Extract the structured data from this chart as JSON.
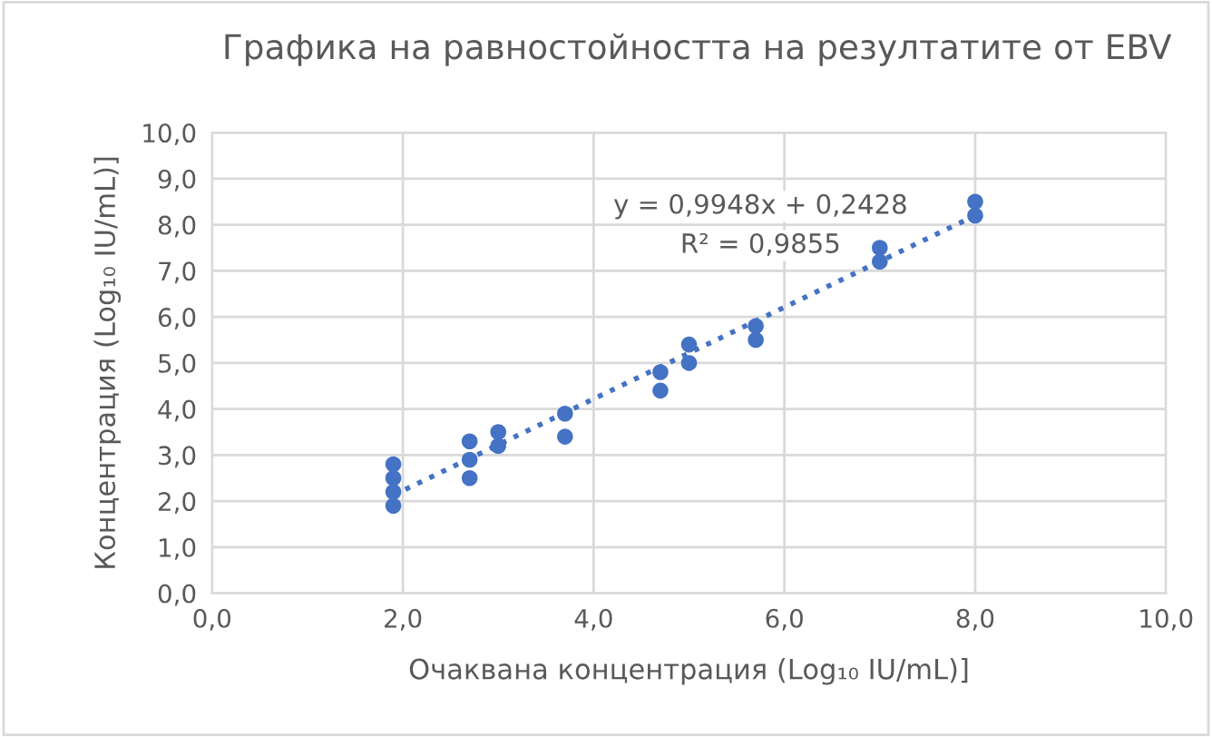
{
  "chart_data": {
    "type": "scatter",
    "title": "Графика на равностойността на резултатите от EBV",
    "xlabel": "Очаквана концентрация (Log₁₀ IU/mL)]",
    "ylabel": "Концентрация (Log₁₀ IU/mL)]",
    "series": [
      {
        "color": "#4472c4",
        "marker": "circle",
        "x": [
          1.9,
          1.9,
          1.9,
          1.9,
          2.7,
          2.7,
          2.7,
          3.0,
          3.0,
          3.7,
          3.7,
          4.7,
          4.7,
          5.0,
          5.0,
          5.7,
          5.7,
          7.0,
          7.0,
          8.0,
          8.0
        ],
        "values": [
          1.9,
          2.2,
          2.5,
          2.8,
          2.5,
          2.9,
          3.3,
          3.2,
          3.5,
          3.4,
          3.9,
          4.4,
          4.8,
          5.0,
          5.4,
          5.5,
          5.8,
          7.2,
          7.5,
          8.2,
          8.5
        ]
      },
      {
        "type": "line",
        "color": "#4472c4",
        "line_style": "dotted",
        "marker": "none",
        "x": [
          1.9,
          8.0
        ],
        "values": [
          2.13,
          8.2
        ]
      }
    ],
    "annotations": [
      "y = 0,9948x + 0,2428",
      "R² = 0,9855"
    ],
    "xlim": [
      0,
      10
    ],
    "ylim": [
      0,
      10
    ],
    "xticks": [
      {
        "value": 0,
        "label": "0,0"
      },
      {
        "value": 2,
        "label": "2,0"
      },
      {
        "value": 4,
        "label": "4,0"
      },
      {
        "value": 6,
        "label": "6,0"
      },
      {
        "value": 8,
        "label": "8,0"
      },
      {
        "value": 10,
        "label": "10,0"
      }
    ],
    "yticks": [
      {
        "value": 0,
        "label": "0,0"
      },
      {
        "value": 1,
        "label": "1,0"
      },
      {
        "value": 2,
        "label": "2,0"
      },
      {
        "value": 3,
        "label": "3,0"
      },
      {
        "value": 4,
        "label": "4,0"
      },
      {
        "value": 5,
        "label": "5,0"
      },
      {
        "value": 6,
        "label": "6,0"
      },
      {
        "value": 7,
        "label": "7,0"
      },
      {
        "value": 8,
        "label": "8,0"
      },
      {
        "value": 9,
        "label": "9,0"
      },
      {
        "value": 10,
        "label": "10,0"
      }
    ],
    "grid": true,
    "legend": false
  }
}
